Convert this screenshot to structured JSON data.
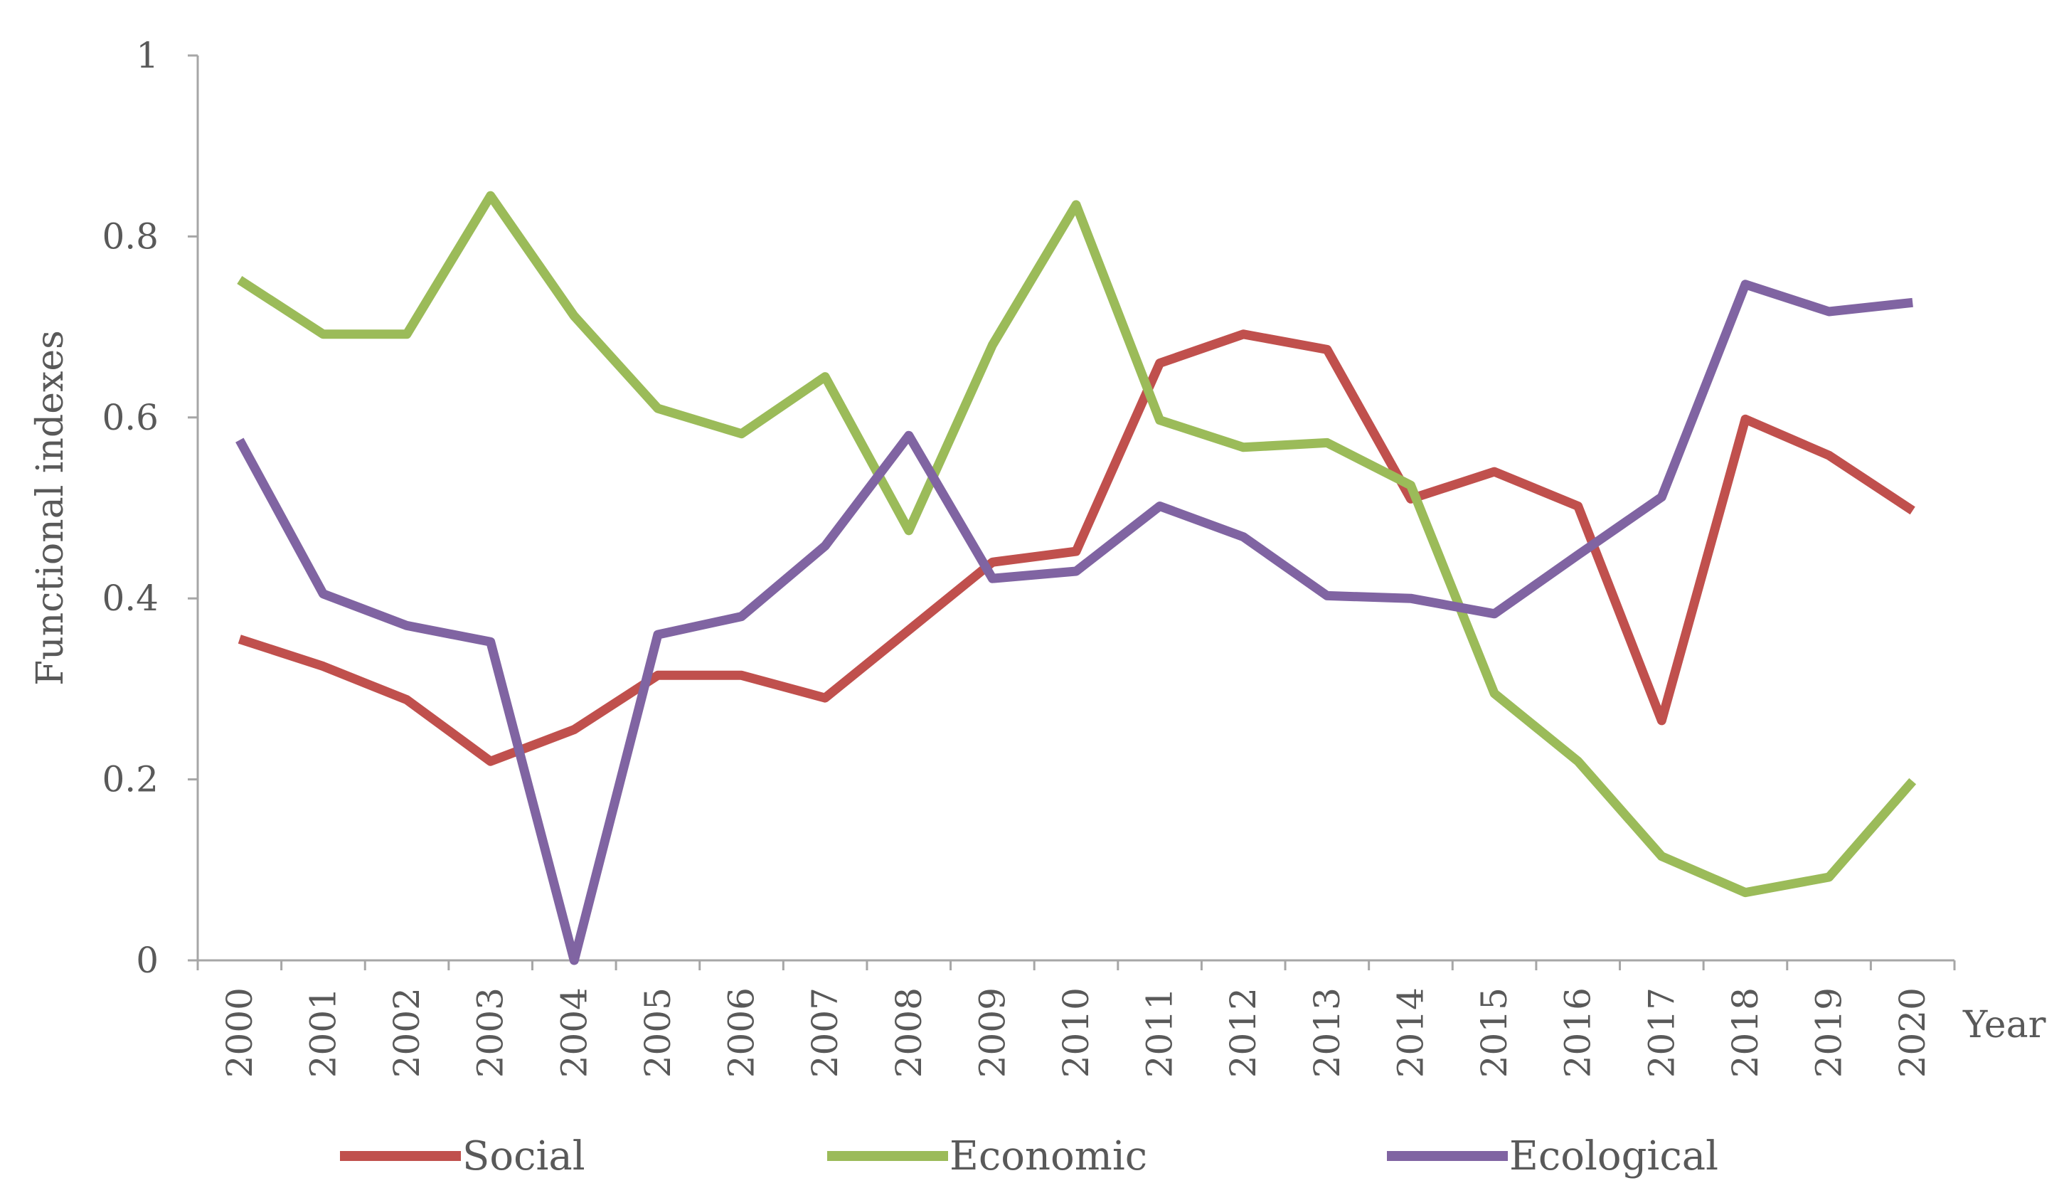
{
  "chart_data": {
    "type": "line",
    "title": "",
    "xlabel": "Year",
    "ylabel": "Functional indexes",
    "categories": [
      "2000",
      "2001",
      "2002",
      "2003",
      "2004",
      "2005",
      "2006",
      "2007",
      "2008",
      "2009",
      "2010",
      "2011",
      "2012",
      "2013",
      "2014",
      "2015",
      "2016",
      "2017",
      "2018",
      "2019",
      "2020"
    ],
    "ylim": [
      0,
      1
    ],
    "yticks": [
      0,
      0.2,
      0.4,
      0.6,
      0.8,
      1
    ],
    "ytick_labels": [
      "0",
      "0.2",
      "0.4",
      "0.6",
      "0.8",
      "1"
    ],
    "grid": false,
    "legend_position": "bottom",
    "series": [
      {
        "name": "Social",
        "color": "#c0504d",
        "values": [
          0.355,
          0.325,
          0.288,
          0.22,
          0.255,
          0.315,
          0.315,
          0.29,
          0.365,
          0.44,
          0.452,
          0.66,
          0.692,
          0.675,
          0.51,
          0.54,
          0.502,
          0.265,
          0.598,
          0.558,
          0.497
        ]
      },
      {
        "name": "Economic",
        "color": "#9bbb59",
        "values": [
          0.752,
          0.692,
          0.692,
          0.845,
          0.712,
          0.61,
          0.582,
          0.645,
          0.475,
          0.68,
          0.835,
          0.597,
          0.567,
          0.572,
          0.525,
          0.295,
          0.22,
          0.115,
          0.075,
          0.092,
          0.198
        ]
      },
      {
        "name": "Ecological",
        "color": "#8064a2",
        "values": [
          0.575,
          0.405,
          0.37,
          0.352,
          0.0,
          0.36,
          0.38,
          0.458,
          0.58,
          0.422,
          0.43,
          0.502,
          0.468,
          0.403,
          0.4,
          0.383,
          0.448,
          0.512,
          0.747,
          0.717,
          0.727
        ]
      }
    ]
  }
}
